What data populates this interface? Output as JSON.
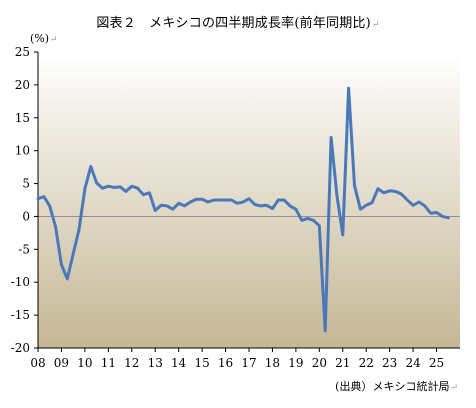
{
  "title": "図表２　メキシコの四半期成長率(前年同期比)",
  "unit_label": "(%)",
  "source": "(出典）メキシコ統計局",
  "colors": {
    "line": "#4A78B8",
    "bg_top": "#ffffff",
    "bg_bottom": "#c5b795",
    "axis": "#000000",
    "gridline": "#888888"
  },
  "chart_data": {
    "type": "line",
    "title": "図表２　メキシコの四半期成長率(前年同期比)",
    "ylabel": "(%)",
    "xlabel": "",
    "ylim": [
      -20,
      25
    ],
    "yticks": [
      25,
      20,
      15,
      10,
      5,
      0,
      -5,
      -10,
      -15,
      -20
    ],
    "x_tick_labels": [
      "08",
      "09",
      "10",
      "11",
      "12",
      "13",
      "14",
      "15",
      "16",
      "17",
      "18",
      "19",
      "20",
      "21",
      "22",
      "23",
      "24",
      "25"
    ],
    "x_tick_years": [
      2008,
      2009,
      2010,
      2011,
      2012,
      2013,
      2014,
      2015,
      2016,
      2017,
      2018,
      2019,
      2020,
      2021,
      2022,
      2023,
      2024,
      2025
    ],
    "grid": false,
    "series": [
      {
        "values": [
          {
            "x": "2008Q1",
            "y": 2.7
          },
          {
            "x": "2008Q2",
            "y": 3.0
          },
          {
            "x": "2008Q3",
            "y": 1.6
          },
          {
            "x": "2008Q4",
            "y": -1.6
          },
          {
            "x": "2009Q1",
            "y": -7.3
          },
          {
            "x": "2009Q2",
            "y": -9.5
          },
          {
            "x": "2009Q3",
            "y": -5.7
          },
          {
            "x": "2009Q4",
            "y": -2.0
          },
          {
            "x": "2010Q1",
            "y": 4.2
          },
          {
            "x": "2010Q2",
            "y": 7.6
          },
          {
            "x": "2010Q3",
            "y": 5.1
          },
          {
            "x": "2010Q4",
            "y": 4.3
          },
          {
            "x": "2011Q1",
            "y": 4.6
          },
          {
            "x": "2011Q2",
            "y": 4.4
          },
          {
            "x": "2011Q3",
            "y": 4.5
          },
          {
            "x": "2011Q4",
            "y": 3.8
          },
          {
            "x": "2012Q1",
            "y": 4.6
          },
          {
            "x": "2012Q2",
            "y": 4.3
          },
          {
            "x": "2012Q3",
            "y": 3.3
          },
          {
            "x": "2012Q4",
            "y": 3.6
          },
          {
            "x": "2013Q1",
            "y": 0.9
          },
          {
            "x": "2013Q2",
            "y": 1.7
          },
          {
            "x": "2013Q3",
            "y": 1.6
          },
          {
            "x": "2013Q4",
            "y": 1.1
          },
          {
            "x": "2014Q1",
            "y": 2.0
          },
          {
            "x": "2014Q2",
            "y": 1.6
          },
          {
            "x": "2014Q3",
            "y": 2.2
          },
          {
            "x": "2014Q4",
            "y": 2.6
          },
          {
            "x": "2015Q1",
            "y": 2.6
          },
          {
            "x": "2015Q2",
            "y": 2.2
          },
          {
            "x": "2015Q3",
            "y": 2.5
          },
          {
            "x": "2015Q4",
            "y": 2.5
          },
          {
            "x": "2016Q1",
            "y": 2.5
          },
          {
            "x": "2016Q2",
            "y": 2.5
          },
          {
            "x": "2016Q3",
            "y": 2.0
          },
          {
            "x": "2016Q4",
            "y": 2.2
          },
          {
            "x": "2017Q1",
            "y": 2.7
          },
          {
            "x": "2017Q2",
            "y": 1.8
          },
          {
            "x": "2017Q3",
            "y": 1.6
          },
          {
            "x": "2017Q4",
            "y": 1.7
          },
          {
            "x": "2018Q1",
            "y": 1.2
          },
          {
            "x": "2018Q2",
            "y": 2.5
          },
          {
            "x": "2018Q3",
            "y": 2.5
          },
          {
            "x": "2018Q4",
            "y": 1.6
          },
          {
            "x": "2019Q1",
            "y": 1.1
          },
          {
            "x": "2019Q2",
            "y": -0.6
          },
          {
            "x": "2019Q3",
            "y": -0.3
          },
          {
            "x": "2019Q4",
            "y": -0.6
          },
          {
            "x": "2020Q1",
            "y": -1.4
          },
          {
            "x": "2020Q2",
            "y": -17.4
          },
          {
            "x": "2020Q3",
            "y": 12.0
          },
          {
            "x": "2020Q4",
            "y": 3.2
          },
          {
            "x": "2021Q1",
            "y": -2.8
          },
          {
            "x": "2021Q2",
            "y": 19.5
          },
          {
            "x": "2021Q3",
            "y": 4.7
          },
          {
            "x": "2021Q4",
            "y": 1.1
          },
          {
            "x": "2022Q1",
            "y": 1.7
          },
          {
            "x": "2022Q2",
            "y": 2.1
          },
          {
            "x": "2022Q3",
            "y": 4.2
          },
          {
            "x": "2022Q4",
            "y": 3.6
          },
          {
            "x": "2023Q1",
            "y": 3.9
          },
          {
            "x": "2023Q2",
            "y": 3.8
          },
          {
            "x": "2023Q3",
            "y": 3.4
          },
          {
            "x": "2023Q4",
            "y": 2.5
          },
          {
            "x": "2024Q1",
            "y": 1.7
          },
          {
            "x": "2024Q2",
            "y": 2.2
          },
          {
            "x": "2024Q3",
            "y": 1.6
          },
          {
            "x": "2024Q4",
            "y": 0.5
          },
          {
            "x": "2025Q1",
            "y": 0.6
          },
          {
            "x": "2025Q2",
            "y": 0.0
          },
          {
            "x": "2025Q3",
            "y": -0.2
          }
        ]
      }
    ]
  }
}
